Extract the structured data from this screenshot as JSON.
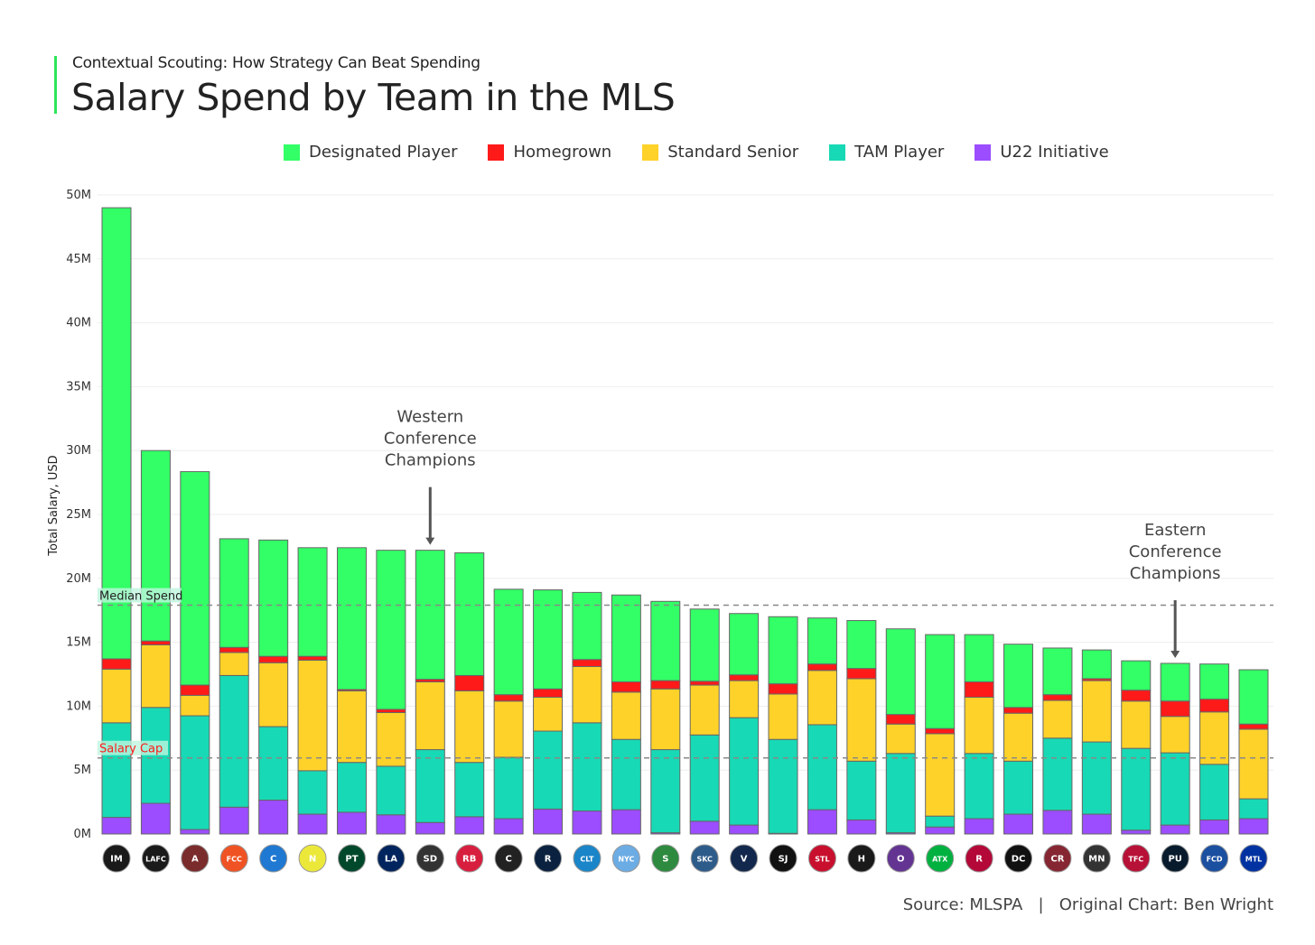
{
  "header": {
    "subtitle": "Contextual Scouting: How Strategy Can Beat Spending",
    "title": "Salary Spend by Team in the MLS"
  },
  "source": "Source: MLSPA   |   Original Chart: Ben Wright",
  "chart_data": {
    "type": "bar",
    "stacked": true,
    "title": "Salary Spend by Team in the MLS",
    "xlabel": "",
    "ylabel": "Total Salary, USD",
    "ylim": [
      0,
      50
    ],
    "yticks": [
      {
        "v": 0,
        "label": "0M"
      },
      {
        "v": 5,
        "label": "5M"
      },
      {
        "v": 10,
        "label": "10M"
      },
      {
        "v": 15,
        "label": "15M"
      },
      {
        "v": 20,
        "label": "20M"
      },
      {
        "v": 25,
        "label": "25M"
      },
      {
        "v": 30,
        "label": "30M"
      },
      {
        "v": 35,
        "label": "35M"
      },
      {
        "v": 40,
        "label": "40M"
      },
      {
        "v": 45,
        "label": "45M"
      },
      {
        "v": 50,
        "label": "50M"
      }
    ],
    "grid": true,
    "legend_position": "top",
    "categories": [
      {
        "name": "Inter Miami",
        "abbr": "IM",
        "color": "#1a1a1a"
      },
      {
        "name": "LAFC",
        "abbr": "LAFC",
        "color": "#1a1a1a"
      },
      {
        "name": "Atlanta United",
        "abbr": "A",
        "color": "#7a2b2b"
      },
      {
        "name": "FC Cincinnati",
        "abbr": "FCC",
        "color": "#f05323"
      },
      {
        "name": "Chicago Fire",
        "abbr": "C",
        "color": "#1f78d1"
      },
      {
        "name": "Nashville SC",
        "abbr": "N",
        "color": "#ece83a"
      },
      {
        "name": "Portland Timbers",
        "abbr": "PT",
        "color": "#00482b"
      },
      {
        "name": "LA Galaxy",
        "abbr": "LA",
        "color": "#00245d"
      },
      {
        "name": "San Diego FC",
        "abbr": "SD",
        "color": "#333"
      },
      {
        "name": "New York Red Bulls",
        "abbr": "RB",
        "color": "#d81e3e"
      },
      {
        "name": "Columbus Crew",
        "abbr": "C",
        "color": "#222"
      },
      {
        "name": "New England Revolution",
        "abbr": "R",
        "color": "#0a2240"
      },
      {
        "name": "Charlotte FC",
        "abbr": "CLT",
        "color": "#1a85c8"
      },
      {
        "name": "New York City FC",
        "abbr": "NYC",
        "color": "#6cace4"
      },
      {
        "name": "Seattle Sounders",
        "abbr": "S",
        "color": "#2d8a3e"
      },
      {
        "name": "Sporting KC",
        "abbr": "SKC",
        "color": "#2e5c8a"
      },
      {
        "name": "Vancouver Whitecaps",
        "abbr": "V",
        "color": "#12284c"
      },
      {
        "name": "San Jose Earthquakes",
        "abbr": "SJ",
        "color": "#111"
      },
      {
        "name": "St. Louis City",
        "abbr": "STL",
        "color": "#c8102e"
      },
      {
        "name": "Houston Dynamo",
        "abbr": "H",
        "color": "#1a1a1a"
      },
      {
        "name": "Orlando City",
        "abbr": "O",
        "color": "#633492"
      },
      {
        "name": "Austin FC",
        "abbr": "ATX",
        "color": "#00b140"
      },
      {
        "name": "Real Salt Lake",
        "abbr": "R",
        "color": "#b30838"
      },
      {
        "name": "D.C. United",
        "abbr": "DC",
        "color": "#111"
      },
      {
        "name": "Colorado Rapids",
        "abbr": "CR",
        "color": "#862633"
      },
      {
        "name": "Minnesota United",
        "abbr": "MN",
        "color": "#333"
      },
      {
        "name": "Toronto FC",
        "abbr": "TFC",
        "color": "#b81137"
      },
      {
        "name": "Philadelphia Union",
        "abbr": "PU",
        "color": "#071b2c"
      },
      {
        "name": "FC Dallas",
        "abbr": "FCD",
        "color": "#1b4fa0"
      },
      {
        "name": "CF Montréal",
        "abbr": "MTL",
        "color": "#0033a1"
      }
    ],
    "series": [
      {
        "name": "U22 Initiative",
        "color": "#9b4dff",
        "values": [
          1.3,
          2.4,
          0.35,
          2.1,
          2.65,
          1.55,
          1.7,
          1.5,
          0.9,
          1.35,
          1.2,
          1.95,
          1.8,
          1.9,
          0.1,
          1.0,
          0.7,
          0.05,
          1.9,
          1.1,
          0.1,
          0.55,
          1.2,
          1.55,
          1.85,
          1.55,
          0.3,
          0.7,
          1.1,
          1.2
        ]
      },
      {
        "name": "TAM Player",
        "color": "#18d9b5",
        "values": [
          7.4,
          7.5,
          8.9,
          10.3,
          5.75,
          3.4,
          3.9,
          3.8,
          5.7,
          4.25,
          4.8,
          6.1,
          6.9,
          5.5,
          6.5,
          6.75,
          8.4,
          7.35,
          6.65,
          4.6,
          6.2,
          0.85,
          5.1,
          4.15,
          5.65,
          5.65,
          6.4,
          5.65,
          4.35,
          1.55
        ]
      },
      {
        "name": "Standard Senior",
        "color": "#ffd22a",
        "values": [
          4.2,
          4.9,
          1.6,
          1.8,
          5.0,
          8.65,
          5.6,
          4.2,
          5.3,
          5.6,
          4.4,
          2.65,
          4.4,
          3.7,
          4.75,
          3.9,
          2.9,
          3.55,
          4.25,
          6.45,
          2.3,
          6.45,
          4.4,
          3.75,
          2.95,
          4.8,
          3.7,
          2.85,
          4.1,
          5.45
        ]
      },
      {
        "name": "Homegrown",
        "color": "#ff1a1a",
        "values": [
          0.8,
          0.3,
          0.8,
          0.4,
          0.5,
          0.3,
          0.1,
          0.25,
          0.2,
          1.2,
          0.5,
          0.65,
          0.55,
          0.8,
          0.65,
          0.3,
          0.45,
          0.8,
          0.5,
          0.8,
          0.75,
          0.4,
          1.2,
          0.45,
          0.45,
          0.15,
          0.85,
          1.2,
          1.0,
          0.4
        ]
      },
      {
        "name": "Designated Player",
        "color": "#33ff66",
        "values": [
          35.3,
          14.9,
          16.7,
          8.5,
          9.1,
          8.5,
          11.1,
          12.45,
          10.1,
          9.6,
          8.25,
          7.75,
          5.25,
          6.8,
          6.2,
          5.65,
          4.8,
          5.25,
          3.6,
          3.75,
          6.7,
          7.35,
          3.7,
          4.95,
          3.65,
          2.25,
          2.3,
          2.95,
          2.75,
          4.25
        ]
      }
    ],
    "legend_order": [
      "Designated Player",
      "Homegrown",
      "Standard Senior",
      "TAM Player",
      "U22 Initiative"
    ],
    "reference_lines": [
      {
        "label": "Median Spend",
        "value": 17.9,
        "label_color": "#222222"
      },
      {
        "label": "Salary Cap",
        "value": 5.95,
        "label_color": "#ff1a1a"
      }
    ],
    "annotations": [
      {
        "text": [
          "Western",
          "Conference",
          "Champions"
        ],
        "category_index": 8
      },
      {
        "text": [
          "Eastern",
          "Conference",
          "Champions"
        ],
        "category_index": 27
      }
    ]
  }
}
